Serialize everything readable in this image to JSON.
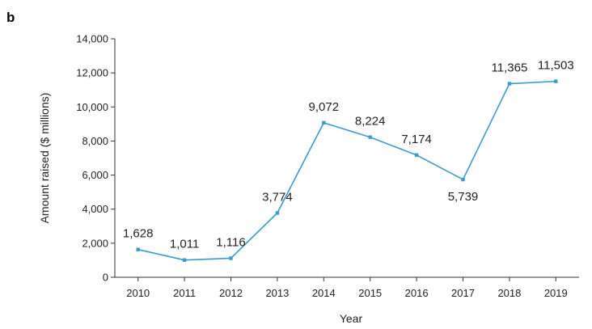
{
  "panel_label": "b",
  "chart_data": {
    "type": "line",
    "title": "",
    "xlabel": "Year",
    "ylabel": "Amount raised ($ millions)",
    "categories": [
      "2010",
      "2011",
      "2012",
      "2013",
      "2014",
      "2015",
      "2016",
      "2017",
      "2018",
      "2019"
    ],
    "series": [
      {
        "name": "Amount raised",
        "values": [
          1628,
          1011,
          1116,
          3774,
          9072,
          8224,
          7174,
          5739,
          11365,
          11503
        ],
        "color": "#3a9bc9"
      }
    ],
    "value_labels": [
      "1,628",
      "1,011",
      "1,116",
      "3,774",
      "9,072",
      "8,224",
      "7,174",
      "5,739",
      "11,365",
      "11,503"
    ],
    "label_placement": [
      "above",
      "above",
      "above",
      "above",
      "above",
      "above",
      "above",
      "below",
      "above",
      "above"
    ],
    "ylim": [
      0,
      14000
    ],
    "yticks": [
      0,
      2000,
      4000,
      6000,
      8000,
      10000,
      12000,
      14000
    ],
    "ytick_labels": [
      "0",
      "2,000",
      "4,000",
      "6,000",
      "8,000",
      "10,000",
      "12,000",
      "14,000"
    ],
    "grid": false,
    "legend": "none"
  }
}
